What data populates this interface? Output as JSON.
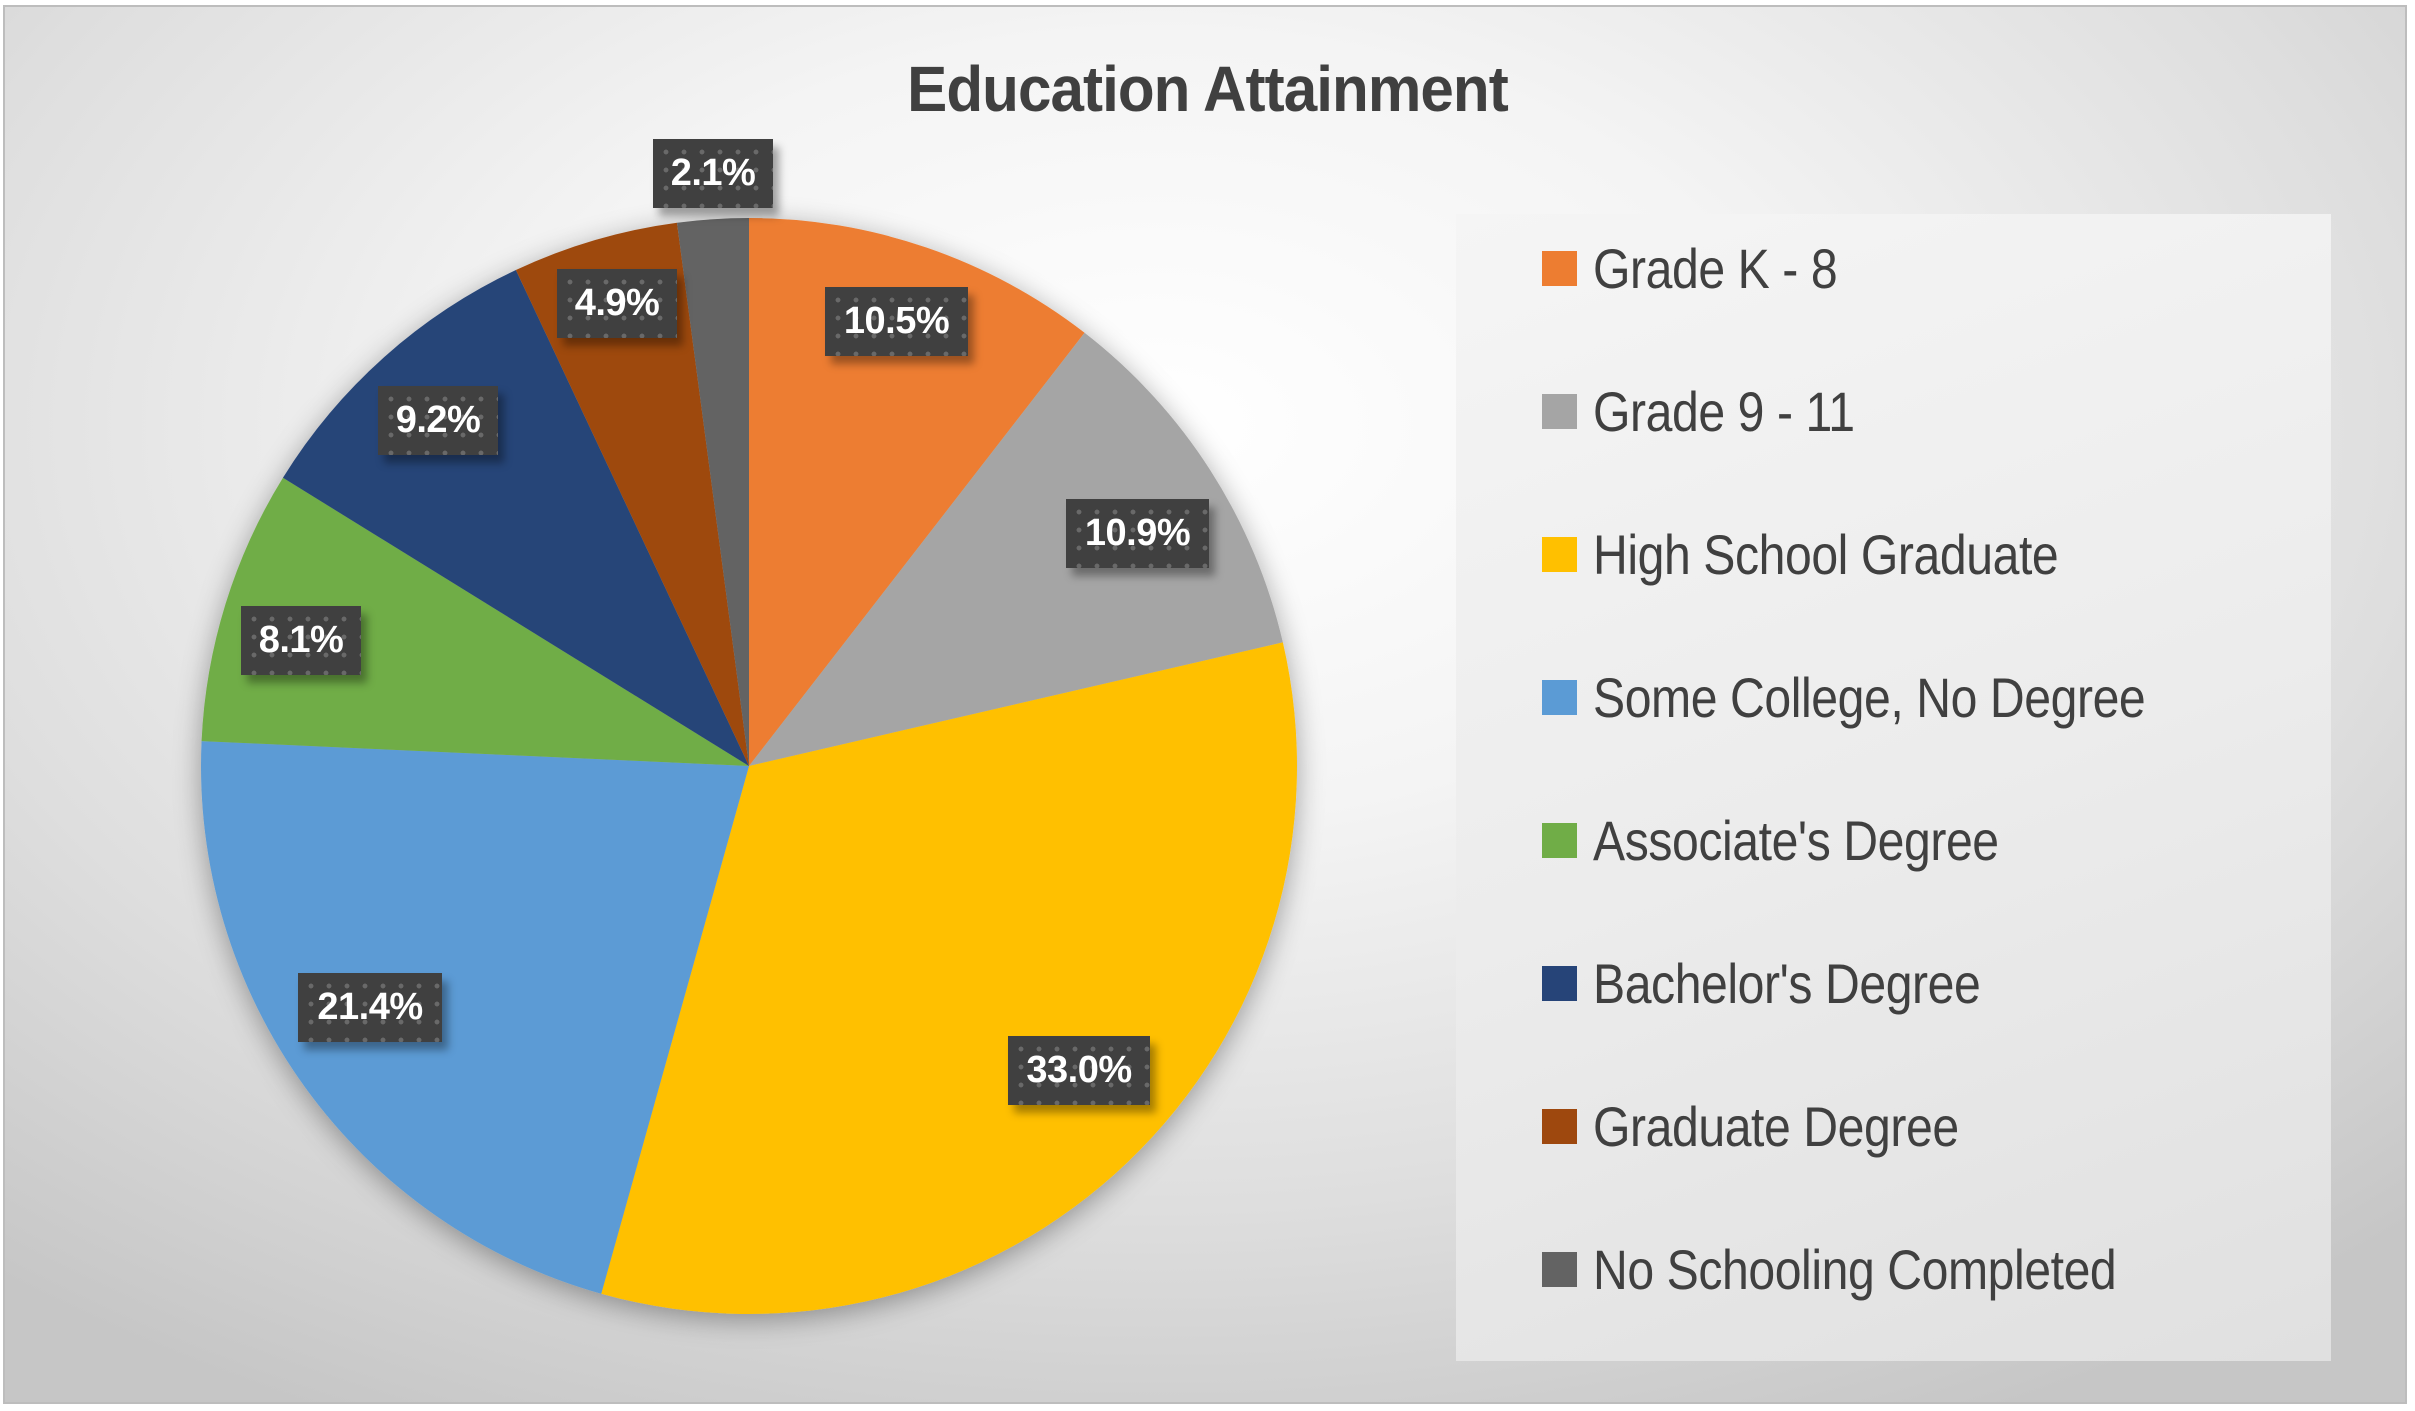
{
  "chart_data": {
    "type": "pie",
    "title": "Education Attainment",
    "categories": [
      "Grade K - 8",
      "Grade 9 - 11",
      "High School Graduate",
      "Some College, No Degree",
      "Associate's Degree",
      "Bachelor's Degree",
      "Graduate Degree",
      "No Schooling Completed"
    ],
    "values": [
      10.5,
      10.9,
      33.0,
      21.4,
      8.1,
      9.2,
      4.9,
      2.1
    ],
    "labels": [
      "10.5%",
      "10.9%",
      "33.0%",
      "21.4%",
      "8.1%",
      "9.2%",
      "4.9%",
      "2.1%"
    ],
    "colors": [
      "#ED7D31",
      "#A5A5A5",
      "#FFC000",
      "#5B9BD5",
      "#70AD47",
      "#264478",
      "#9E480E",
      "#636363"
    ],
    "unit": "%",
    "start_angle": "12 o'clock, clockwise",
    "legend_position": "right",
    "xlabel": "",
    "ylabel": ""
  },
  "labels": {
    "title": "Education Attainment"
  },
  "legend": {
    "items": [
      {
        "label": "Grade K - 8",
        "color": "#ED7D31"
      },
      {
        "label": "Grade 9 - 11",
        "color": "#A5A5A5"
      },
      {
        "label": "High School Graduate",
        "color": "#FFC000"
      },
      {
        "label": "Some College, No Degree",
        "color": "#5B9BD5"
      },
      {
        "label": "Associate's Degree",
        "color": "#70AD47"
      },
      {
        "label": "Bachelor's Degree",
        "color": "#264478"
      },
      {
        "label": "Graduate Degree",
        "color": "#9E480E"
      },
      {
        "label": "No Schooling Completed",
        "color": "#636363"
      }
    ]
  },
  "data_labels": [
    {
      "text": "10.5%"
    },
    {
      "text": "10.9%"
    },
    {
      "text": "33.0%"
    },
    {
      "text": "21.4%"
    },
    {
      "text": "8.1%"
    },
    {
      "text": "9.2%"
    },
    {
      "text": "4.9%"
    },
    {
      "text": "2.1%"
    }
  ]
}
